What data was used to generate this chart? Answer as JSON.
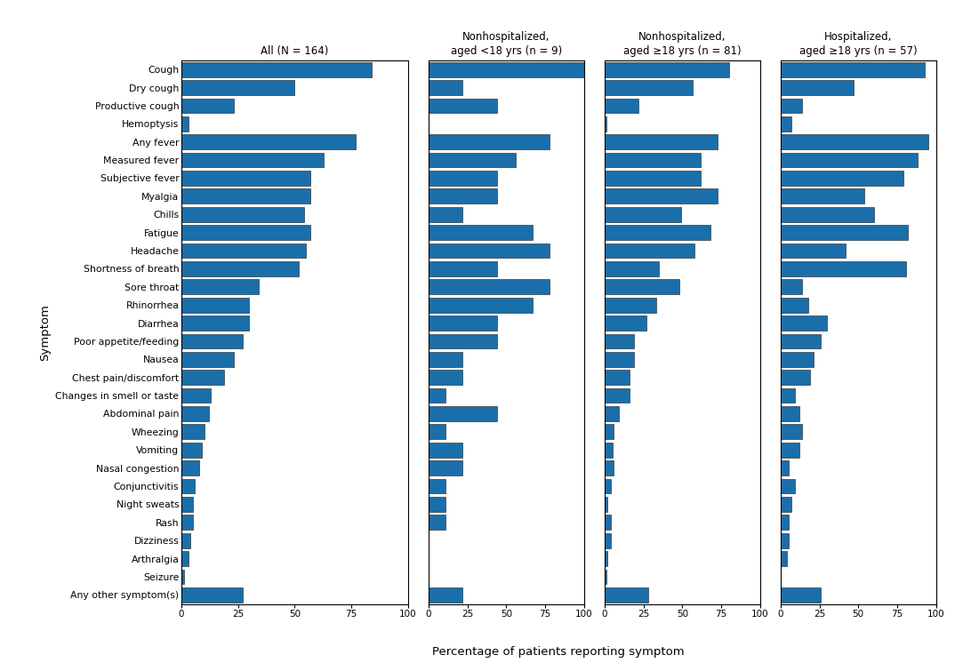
{
  "symptoms": [
    "Cough",
    "Dry cough",
    "Productive cough",
    "Hemoptysis",
    "Any fever",
    "Measured fever",
    "Subjective fever",
    "Myalgia",
    "Chills",
    "Fatigue",
    "Headache",
    "Shortness of breath",
    "Sore throat",
    "Rhinorrhea",
    "Diarrhea",
    "Poor appetite/feeding",
    "Nausea",
    "Chest pain/discomfort",
    "Changes in smell or taste",
    "Abdominal pain",
    "Wheezing",
    "Vomiting",
    "Nasal congestion",
    "Conjunctivitis",
    "Night sweats",
    "Rash",
    "Dizziness",
    "Arthralgia",
    "Seizure",
    "Any other symptom(s)"
  ],
  "all": [
    84,
    50,
    23,
    3,
    77,
    63,
    57,
    57,
    54,
    57,
    55,
    52,
    34,
    30,
    30,
    27,
    23,
    19,
    13,
    12,
    10,
    9,
    8,
    6,
    5,
    5,
    4,
    3,
    1,
    27
  ],
  "nonhosp_lt18": [
    100,
    22,
    44,
    0,
    78,
    56,
    44,
    44,
    22,
    67,
    78,
    44,
    78,
    67,
    44,
    44,
    22,
    22,
    11,
    44,
    11,
    22,
    22,
    11,
    11,
    11,
    0,
    0,
    0,
    22
  ],
  "nonhosp_ge18": [
    80,
    57,
    22,
    1,
    73,
    62,
    62,
    73,
    49,
    68,
    58,
    35,
    48,
    33,
    27,
    19,
    19,
    16,
    16,
    9,
    6,
    5,
    6,
    4,
    2,
    4,
    4,
    2,
    1,
    28
  ],
  "hosp_ge18": [
    93,
    47,
    14,
    7,
    95,
    88,
    79,
    54,
    60,
    82,
    42,
    81,
    14,
    18,
    30,
    26,
    21,
    19,
    9,
    12,
    14,
    12,
    5,
    9,
    7,
    5,
    5,
    4,
    0,
    26
  ],
  "titles": [
    "All (N = 164)",
    "Nonhospitalized,\naged <18 yrs (n = 9)",
    "Nonhospitalized,\naged ≥18 yrs (n = 81)",
    "Hospitalized,\naged ≥18 yrs (n = 57)"
  ],
  "bar_color": "#1A6FAA",
  "xlabel": "Percentage of patients reporting symptom",
  "ylabel": "Symptom",
  "xticks": [
    0,
    25,
    50,
    75,
    100
  ],
  "bg_color": "#ffffff"
}
